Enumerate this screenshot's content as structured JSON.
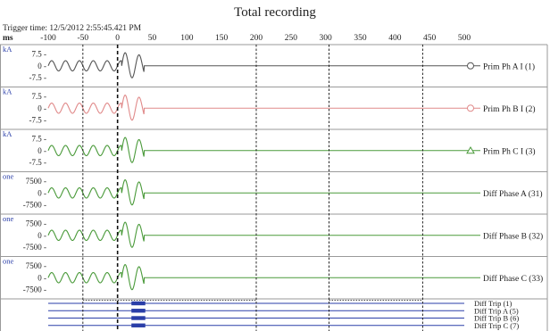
{
  "window": {
    "title": "Total recording",
    "trigger_label": "Trigger time: 12/5/2012 2:55:45.421 PM",
    "x_unit": "ms"
  },
  "chart_data": {
    "type": "line",
    "title": "Total recording",
    "xlabel": "ms",
    "xlim": [
      -100,
      500
    ],
    "x_ticks": [
      -100,
      -50,
      0,
      50,
      100,
      150,
      200,
      250,
      300,
      350,
      400,
      450,
      500
    ],
    "x_tick_labels": [
      "-100",
      "-50",
      "0",
      "50",
      "100",
      "150",
      "200",
      "250",
      "300",
      "350",
      "400",
      "450",
      "500"
    ],
    "cursors_ms": [
      -50,
      0,
      200,
      305,
      440
    ],
    "trigger_ms": 0,
    "analog_channels": [
      {
        "unit": "kA",
        "y_ticks": [
          7.5,
          0,
          -7.5
        ],
        "y_tick_labels": [
          "7.5 -",
          "0 -",
          "-7.5 -"
        ],
        "ylim": [
          -11,
          11
        ],
        "name": "Prim Ph A I (1)",
        "color": "#555555",
        "marker": "circle",
        "prefault_amplitude": 3.2,
        "fault_amplitude": 8.5,
        "fault_start_ms": 6,
        "fault_end_ms": 38,
        "cycle_ms": 20
      },
      {
        "unit": "kA",
        "y_ticks": [
          7.5,
          0,
          -7.5
        ],
        "y_tick_labels": [
          "7.5 -",
          "0 -",
          "-7.5 -"
        ],
        "ylim": [
          -11,
          11
        ],
        "name": "Prim Ph B I (2)",
        "color": "#e08a8a",
        "marker": "circle",
        "prefault_amplitude": 3.2,
        "fault_amplitude": 8.5,
        "fault_start_ms": 6,
        "fault_end_ms": 38,
        "cycle_ms": 20
      },
      {
        "unit": "kA",
        "y_ticks": [
          7.5,
          0,
          -7.5
        ],
        "y_tick_labels": [
          "7.5 -",
          "0 -",
          "-7.5 -"
        ],
        "ylim": [
          -11,
          11
        ],
        "name": "Prim Ph C I (3)",
        "color": "#4a9a3a",
        "marker": "triangle",
        "prefault_amplitude": 3.2,
        "fault_amplitude": 8.5,
        "fault_start_ms": 6,
        "fault_end_ms": 38,
        "cycle_ms": 20
      },
      {
        "unit": "one",
        "y_ticks": [
          7500,
          0,
          -7500
        ],
        "y_tick_labels": [
          "7500 -",
          "0 -",
          "-7500 -"
        ],
        "ylim": [
          -11000,
          11000
        ],
        "name": "Diff Phase A (31)",
        "color": "#4a9a3a",
        "marker": "none",
        "prefault_amplitude": 3200,
        "fault_amplitude": 8500,
        "fault_start_ms": 6,
        "fault_end_ms": 38,
        "cycle_ms": 20
      },
      {
        "unit": "one",
        "y_ticks": [
          7500,
          0,
          -7500
        ],
        "y_tick_labels": [
          "7500 -",
          "0 -",
          "-7500 -"
        ],
        "ylim": [
          -11000,
          11000
        ],
        "name": "Diff Phase B (32)",
        "color": "#4a9a3a",
        "marker": "none",
        "prefault_amplitude": 3200,
        "fault_amplitude": 8500,
        "fault_start_ms": 6,
        "fault_end_ms": 38,
        "cycle_ms": 20
      },
      {
        "unit": "one",
        "y_ticks": [
          7500,
          0,
          -7500
        ],
        "y_tick_labels": [
          "7500 -",
          "0 -",
          "-7500 -"
        ],
        "ylim": [
          -11000,
          11000
        ],
        "name": "Diff Phase C (33)",
        "color": "#4a9a3a",
        "marker": "none",
        "prefault_amplitude": 3200,
        "fault_amplitude": 8500,
        "fault_start_ms": 6,
        "fault_end_ms": 38,
        "cycle_ms": 20
      }
    ],
    "digital_channels": [
      {
        "name": "Diff Trip (1)",
        "color": "#2a3ea8",
        "active_from_ms": 20,
        "active_to_ms": 40
      },
      {
        "name": "Diff Trip A (5)",
        "color": "#2a3ea8",
        "active_from_ms": 20,
        "active_to_ms": 40
      },
      {
        "name": "Diff Trip B (6)",
        "color": "#2a3ea8",
        "active_from_ms": 20,
        "active_to_ms": 40
      },
      {
        "name": "Diff Trip C (7)",
        "color": "#2a3ea8",
        "active_from_ms": 20,
        "active_to_ms": 40
      }
    ]
  }
}
